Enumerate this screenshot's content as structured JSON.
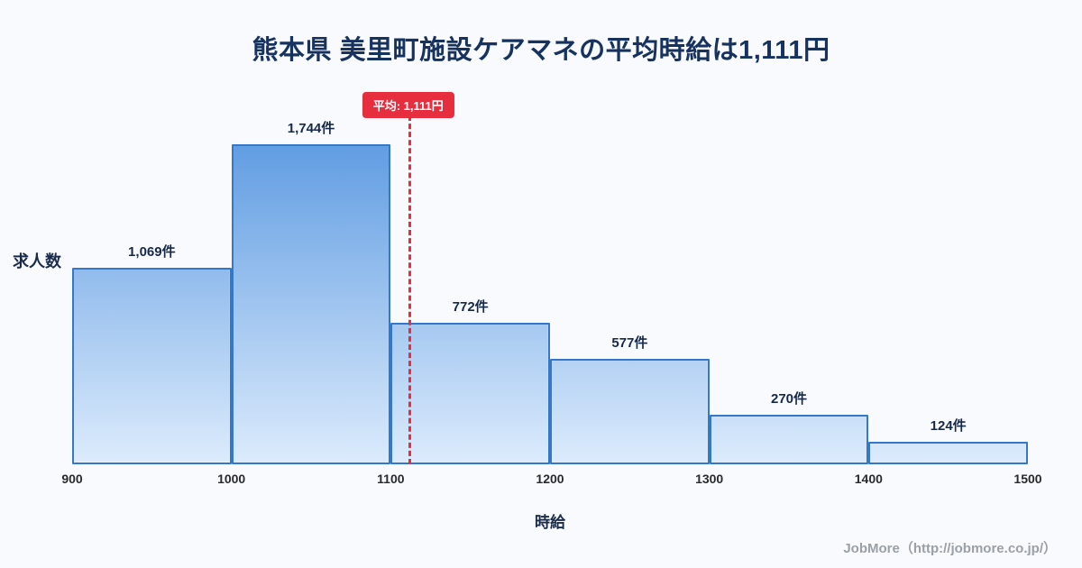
{
  "title": "熊本県 美里町施設ケアマネの平均時給は1,111円",
  "chart_data": {
    "type": "bar",
    "subtype": "histogram",
    "title": "熊本県 美里町施設ケアマネの平均時給は1,111円",
    "xlabel": "時給",
    "ylabel": "求人数",
    "bin_edges": [
      900,
      1000,
      1100,
      1200,
      1300,
      1400,
      1500
    ],
    "categories": [
      "900-1000",
      "1000-1100",
      "1100-1200",
      "1200-1300",
      "1300-1400",
      "1400-1500"
    ],
    "values": [
      1069,
      1744,
      772,
      577,
      270,
      124
    ],
    "bar_labels": [
      "1,069件",
      "1,744件",
      "772件",
      "577件",
      "270件",
      "124件"
    ],
    "x_ticks": [
      "900",
      "1000",
      "1100",
      "1200",
      "1300",
      "1400",
      "1500"
    ],
    "xlim": [
      900,
      1500
    ],
    "ylim": [
      0,
      1800
    ],
    "grid": false,
    "legend_position": "none",
    "average_marker": {
      "value": 1111,
      "label": "平均: 1,111円",
      "style": "dashed-vertical-line"
    },
    "colors": {
      "background": "#f8fafd",
      "title_text": "#16325f",
      "bar_border": "#3578c9",
      "bar_gradient_top": "#5f9ce2",
      "bar_gradient_bottom": "#dcebfc",
      "average_red": "#e62e3e",
      "footer_text": "#9aa0a6"
    }
  },
  "footer": {
    "credit": "JobMore（http://jobmore.co.jp/）"
  }
}
